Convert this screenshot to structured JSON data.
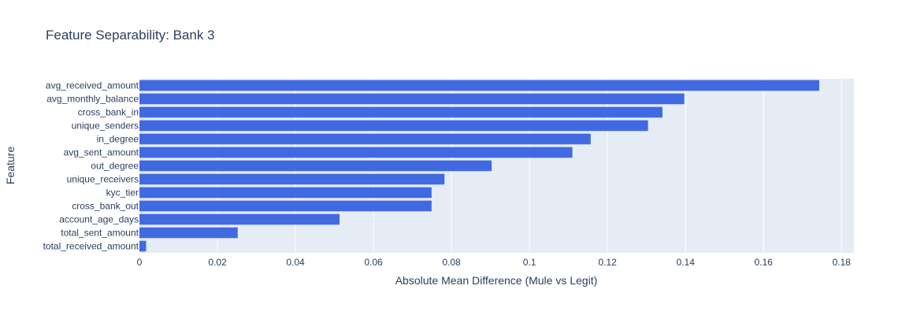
{
  "chart_data": {
    "type": "bar",
    "orientation": "horizontal",
    "title": "Feature Separability: Bank 3",
    "xlabel": "Absolute Mean Difference (Mule vs Legit)",
    "ylabel": "Feature",
    "categories": [
      "avg_received_amount",
      "avg_monthly_balance",
      "cross_bank_in",
      "unique_senders",
      "in_degree",
      "avg_sent_amount",
      "out_degree",
      "unique_receivers",
      "kyc_tier",
      "cross_bank_out",
      "account_age_days",
      "total_sent_amount",
      "total_received_amount"
    ],
    "values": [
      0.1743,
      0.1397,
      0.1341,
      0.1304,
      0.1157,
      0.111,
      0.0903,
      0.0782,
      0.0749,
      0.0749,
      0.0513,
      0.0252,
      0.0017
    ],
    "xlim": [
      0,
      0.1832
    ],
    "xticks": [
      "0",
      "0.02",
      "0.04",
      "0.06",
      "0.08",
      "0.1",
      "0.12",
      "0.14",
      "0.16",
      "0.18"
    ],
    "grid": true,
    "legend": "none",
    "colors": {
      "bar": "#4169e1",
      "plot_bg": "#e5ecf6",
      "grid": "#ffffff",
      "text": "#2a3f5f"
    }
  }
}
